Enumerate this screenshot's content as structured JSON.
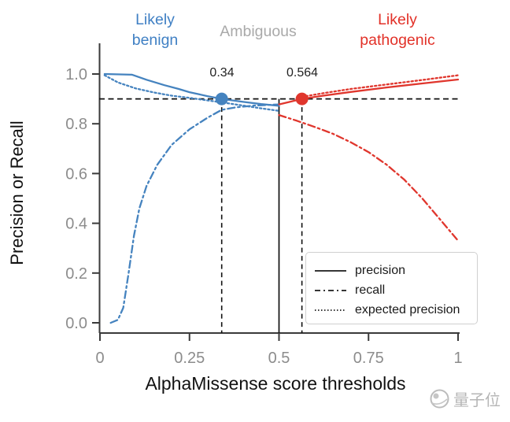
{
  "regions": {
    "benign": {
      "line1": "Likely",
      "line2": "benign"
    },
    "ambiguous": {
      "label": "Ambiguous"
    },
    "pathogenic": {
      "line1": "Likely",
      "line2": "pathogenic"
    }
  },
  "axes": {
    "ylabel": "Precision or Recall",
    "xlabel": "AlphaMissense score thresholds",
    "y_ticks": [
      "1.0",
      "0.8",
      "0.6",
      "0.4",
      "0.2",
      "0.0"
    ],
    "x_ticks": [
      "0",
      "0.25",
      "0.5",
      "0.75",
      "1"
    ]
  },
  "annotations": {
    "benign_threshold": "0.34",
    "pathogenic_threshold": "0.564"
  },
  "legend": {
    "items": [
      {
        "label": "precision",
        "style": "solid"
      },
      {
        "label": "recall",
        "style": "dashdot"
      },
      {
        "label": "expected precision",
        "style": "dotted"
      }
    ]
  },
  "watermark": {
    "text": "量子位"
  },
  "chart_data": {
    "type": "line",
    "title": "",
    "xlabel": "AlphaMissense score thresholds",
    "ylabel": "Precision or Recall",
    "xlim": [
      0,
      1
    ],
    "ylim": [
      0.0,
      1.0
    ],
    "legend_position": "lower right",
    "colors": {
      "blue": "#4583bf",
      "red": "#e0362d",
      "black": "#1a1a1a"
    },
    "reference": {
      "precision_target": 0.9,
      "benign_cutoff": 0.34,
      "class_boundary": 0.5,
      "pathogenic_cutoff": 0.564
    },
    "vlines": [
      {
        "x": 0.34,
        "style": "dashed"
      },
      {
        "x": 0.5,
        "style": "solid"
      },
      {
        "x": 0.564,
        "style": "dashed"
      }
    ],
    "markers": [
      {
        "x": 0.34,
        "y": 0.9,
        "color": "blue"
      },
      {
        "x": 0.564,
        "y": 0.9,
        "color": "red"
      }
    ],
    "series": [
      {
        "name": "precision-benign",
        "color": "blue",
        "style": "solid",
        "points": [
          [
            0.013,
            1.0
          ],
          [
            0.09,
            0.997
          ],
          [
            0.13,
            0.977
          ],
          [
            0.18,
            0.955
          ],
          [
            0.22,
            0.94
          ],
          [
            0.25,
            0.927
          ],
          [
            0.3,
            0.911
          ],
          [
            0.34,
            0.9
          ],
          [
            0.4,
            0.888
          ],
          [
            0.45,
            0.879
          ],
          [
            0.5,
            0.872
          ]
        ]
      },
      {
        "name": "expected-precision-benign",
        "color": "blue",
        "style": "dotted",
        "points": [
          [
            0.013,
            0.995
          ],
          [
            0.05,
            0.966
          ],
          [
            0.1,
            0.942
          ],
          [
            0.15,
            0.926
          ],
          [
            0.2,
            0.913
          ],
          [
            0.25,
            0.904
          ],
          [
            0.3,
            0.894
          ],
          [
            0.34,
            0.886
          ],
          [
            0.4,
            0.873
          ],
          [
            0.45,
            0.862
          ],
          [
            0.5,
            0.852
          ]
        ]
      },
      {
        "name": "recall-benign",
        "color": "blue",
        "style": "dashdot",
        "points": [
          [
            0.03,
            0.0
          ],
          [
            0.05,
            0.012
          ],
          [
            0.065,
            0.06
          ],
          [
            0.08,
            0.2
          ],
          [
            0.095,
            0.35
          ],
          [
            0.11,
            0.46
          ],
          [
            0.13,
            0.55
          ],
          [
            0.16,
            0.635
          ],
          [
            0.2,
            0.715
          ],
          [
            0.25,
            0.778
          ],
          [
            0.3,
            0.824
          ],
          [
            0.34,
            0.856
          ],
          [
            0.38,
            0.866
          ],
          [
            0.43,
            0.873
          ],
          [
            0.5,
            0.878
          ]
        ]
      },
      {
        "name": "precision-pathogenic",
        "color": "red",
        "style": "solid",
        "points": [
          [
            0.5,
            0.878
          ],
          [
            0.53,
            0.888
          ],
          [
            0.564,
            0.9
          ],
          [
            0.62,
            0.912
          ],
          [
            0.7,
            0.928
          ],
          [
            0.8,
            0.946
          ],
          [
            0.9,
            0.962
          ],
          [
            1.0,
            0.978
          ]
        ]
      },
      {
        "name": "expected-precision-pathogenic",
        "color": "red",
        "style": "dotted",
        "points": [
          [
            0.564,
            0.908
          ],
          [
            0.62,
            0.922
          ],
          [
            0.7,
            0.94
          ],
          [
            0.8,
            0.958
          ],
          [
            0.9,
            0.976
          ],
          [
            1.0,
            0.995
          ]
        ]
      },
      {
        "name": "recall-pathogenic",
        "color": "red",
        "style": "dashdot",
        "points": [
          [
            0.5,
            0.835
          ],
          [
            0.55,
            0.812
          ],
          [
            0.6,
            0.787
          ],
          [
            0.65,
            0.76
          ],
          [
            0.7,
            0.726
          ],
          [
            0.75,
            0.686
          ],
          [
            0.8,
            0.636
          ],
          [
            0.85,
            0.575
          ],
          [
            0.9,
            0.5
          ],
          [
            0.95,
            0.415
          ],
          [
            1.0,
            0.33
          ]
        ]
      }
    ]
  }
}
